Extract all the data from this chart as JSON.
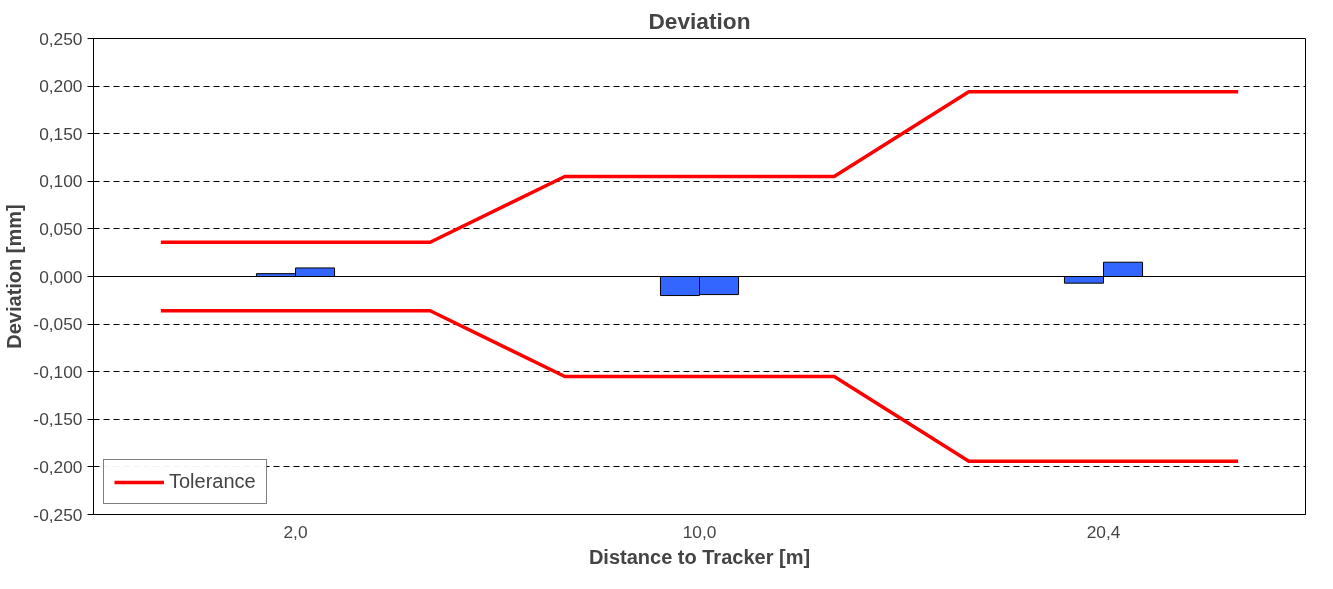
{
  "chart_data": {
    "type": "bar",
    "title": "Deviation",
    "xlabel": "Distance to Tracker [m]",
    "ylabel": "Deviation [mm]",
    "categories": [
      null,
      "2,0",
      null,
      null,
      "10,0",
      null,
      null,
      "20,4",
      null
    ],
    "series": [
      {
        "color": "#3366ff",
        "values": [
          null,
          0.003,
          null,
          null,
          -0.02,
          null,
          null,
          -0.007,
          null
        ]
      },
      {
        "color": "#3366ff",
        "values": [
          null,
          0.009,
          null,
          null,
          -0.019,
          null,
          null,
          0.015,
          null
        ]
      },
      {
        "type": "line",
        "name": "Tolerance",
        "color": "#ff0000",
        "values": [
          0.036,
          0.036,
          0.036,
          0.105,
          0.105,
          0.105,
          0.194,
          0.194,
          0.194
        ]
      },
      {
        "type": "line",
        "color": "#ff0000",
        "values": [
          -0.036,
          -0.036,
          -0.036,
          -0.105,
          -0.105,
          -0.105,
          -0.194,
          -0.194,
          -0.194
        ]
      }
    ],
    "ylim": [
      -0.25,
      0.25
    ],
    "yticks": [
      {
        "value": -0.25,
        "label": "-0,250"
      },
      {
        "value": -0.2,
        "label": "-0,200"
      },
      {
        "value": -0.15,
        "label": "-0,150"
      },
      {
        "value": -0.1,
        "label": "-0,100"
      },
      {
        "value": -0.05,
        "label": "-0,050"
      },
      {
        "value": 0,
        "label": "0,000"
      },
      {
        "value": 0.05,
        "label": "0,050"
      },
      {
        "value": 0.1,
        "label": "0,100"
      },
      {
        "value": 0.15,
        "label": "0,150"
      },
      {
        "value": 0.2,
        "label": "0,200"
      },
      {
        "value": 0.25,
        "label": "0,250"
      }
    ],
    "grid": "y",
    "legend": "bottom left",
    "line_style": "solid"
  }
}
